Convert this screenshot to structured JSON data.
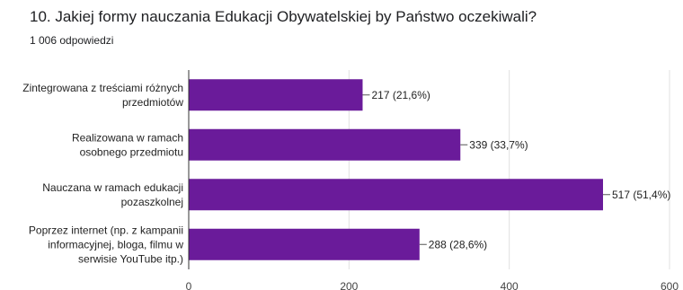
{
  "question": {
    "title": "10. Jakiej formy nauczania Edukacji Obywatelskiej by Państwo oczekiwali?",
    "responses": "1 006 odpowiedzi"
  },
  "chart_data": {
    "type": "bar",
    "orientation": "horizontal",
    "title": "10. Jakiej formy nauczania Edukacji Obywatelskiej by Państwo oczekiwali?",
    "subtitle": "1 006 odpowiedzi",
    "categories": [
      [
        "Zintegrowana z treściami różnych",
        "przedmiotów"
      ],
      [
        "Realizowana w ramach",
        "osobnego przedmiotu"
      ],
      [
        "Nauczana w ramach edukacji",
        "pozaszkolnej"
      ],
      [
        "Poprzez internet (np. z kampanii",
        "informacyjnej, bloga, filmu w",
        "serwisie YouTube itp.)"
      ]
    ],
    "values": [
      217,
      339,
      517,
      288
    ],
    "data_labels": [
      "217 (21,6%)",
      "339 (33,7%)",
      "517 (51,4%)",
      "288 (28,6%)"
    ],
    "xlim": [
      0,
      600
    ],
    "xticks": [
      "0",
      "200",
      "400",
      "600"
    ],
    "bar_color": "#6a1b9a",
    "grid": true
  }
}
